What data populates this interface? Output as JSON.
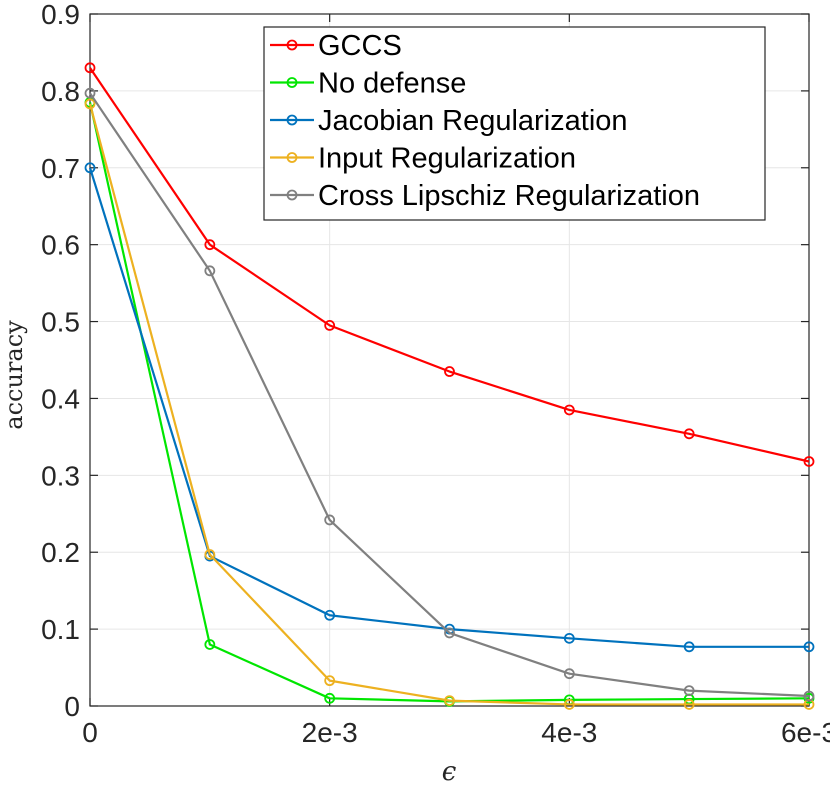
{
  "chart_data": {
    "type": "line",
    "title": "",
    "xlabel": "ϵ",
    "ylabel": "accuracy",
    "x": [
      0,
      0.001,
      0.002,
      0.003,
      0.004,
      0.005,
      0.006
    ],
    "xlim": [
      0,
      0.006
    ],
    "ylim": [
      0,
      0.9
    ],
    "xticks": [
      0,
      0.002,
      0.004,
      0.006
    ],
    "xtick_labels": [
      "0",
      "2e-3",
      "4e-3",
      "6e-3"
    ],
    "yticks": [
      0,
      0.1,
      0.2,
      0.3,
      0.4,
      0.5,
      0.6,
      0.7,
      0.8,
      0.9
    ],
    "ytick_labels": [
      "0",
      "0.1",
      "0.2",
      "0.3",
      "0.4",
      "0.5",
      "0.6",
      "0.7",
      "0.8",
      "0.9"
    ],
    "grid": true,
    "legend_position": "top-right",
    "series": [
      {
        "name": "GCCS",
        "color": "#ff0000",
        "values": [
          0.83,
          0.6,
          0.495,
          0.435,
          0.385,
          0.354,
          0.318
        ]
      },
      {
        "name": "No defense",
        "color": "#00e600",
        "values": [
          0.785,
          0.08,
          0.01,
          0.006,
          0.008,
          0.009,
          0.01
        ]
      },
      {
        "name": "Jacobian Regularization",
        "color": "#0072bd",
        "values": [
          0.7,
          0.195,
          0.118,
          0.1,
          0.088,
          0.077,
          0.077
        ]
      },
      {
        "name": "Input Regularization",
        "color": "#edb120",
        "values": [
          0.783,
          0.197,
          0.033,
          0.007,
          0.002,
          0.002,
          0.002
        ]
      },
      {
        "name": "Cross Lipschiz Regularization",
        "color": "#808080",
        "values": [
          0.797,
          0.566,
          0.242,
          0.095,
          0.042,
          0.02,
          0.013
        ]
      }
    ]
  }
}
